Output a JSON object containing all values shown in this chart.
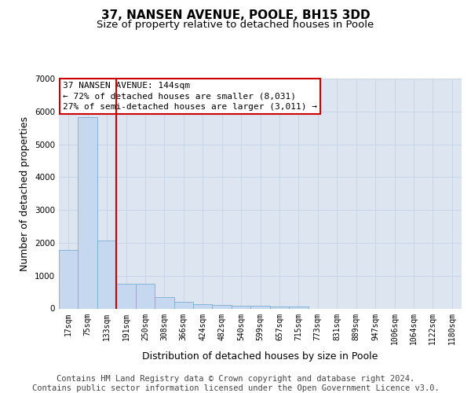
{
  "title": "37, NANSEN AVENUE, POOLE, BH15 3DD",
  "subtitle": "Size of property relative to detached houses in Poole",
  "xlabel": "Distribution of detached houses by size in Poole",
  "ylabel": "Number of detached properties",
  "bin_labels": [
    "17sqm",
    "75sqm",
    "133sqm",
    "191sqm",
    "250sqm",
    "308sqm",
    "366sqm",
    "424sqm",
    "482sqm",
    "540sqm",
    "599sqm",
    "657sqm",
    "715sqm",
    "773sqm",
    "831sqm",
    "889sqm",
    "947sqm",
    "1006sqm",
    "1064sqm",
    "1122sqm",
    "1180sqm"
  ],
  "bar_values": [
    1780,
    5820,
    2060,
    760,
    760,
    340,
    200,
    120,
    110,
    80,
    80,
    60,
    60,
    0,
    0,
    0,
    0,
    0,
    0,
    0,
    0
  ],
  "bar_color": "#c5d8f0",
  "bar_edgecolor": "#7aadd4",
  "vline_color": "#cc0000",
  "vline_x_index": 2.5,
  "annotation_text": "37 NANSEN AVENUE: 144sqm\n← 72% of detached houses are smaller (8,031)\n27% of semi-detached houses are larger (3,011) →",
  "annotation_box_color": "#cc0000",
  "annotation_bg": "#ffffff",
  "ylim": [
    0,
    7000
  ],
  "yticks": [
    0,
    1000,
    2000,
    3000,
    4000,
    5000,
    6000,
    7000
  ],
  "grid_color": "#c8d4e8",
  "bg_color": "#dde5f0",
  "footer_line1": "Contains HM Land Registry data © Crown copyright and database right 2024.",
  "footer_line2": "Contains public sector information licensed under the Open Government Licence v3.0.",
  "title_fontsize": 11,
  "subtitle_fontsize": 9.5,
  "footer_fontsize": 7.5,
  "axis_label_fontsize": 9,
  "tick_fontsize": 7,
  "annotation_fontsize": 8
}
